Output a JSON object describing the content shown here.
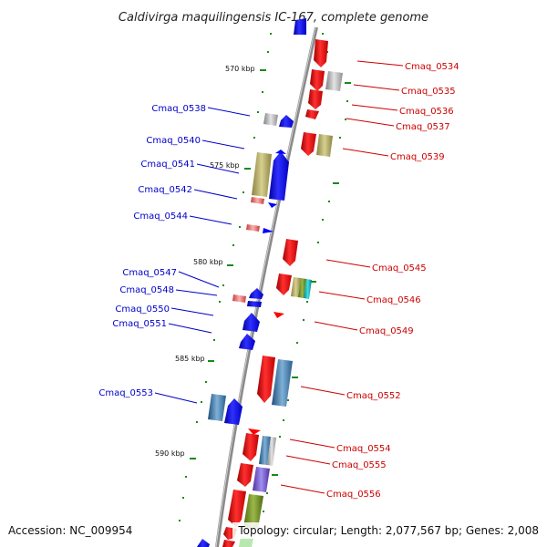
{
  "title": "Caldivirga maquilingensis IC-167, complete genome",
  "footer": {
    "accession": "Accession: NC_009954",
    "summary": "Topology: circular; Length: 2,077,567 bp; Genes: 2,008"
  },
  "scale_labels": [
    "570 kbp",
    "575 kbp",
    "580 kbp",
    "585 kbp",
    "590 kbp"
  ],
  "genes_left": [
    {
      "label": "Cmaq_0538",
      "color": "#0000cc"
    },
    {
      "label": "Cmaq_0540",
      "color": "#0000cc"
    },
    {
      "label": "Cmaq_0541",
      "color": "#0000cc"
    },
    {
      "label": "Cmaq_0542",
      "color": "#0000cc"
    },
    {
      "label": "Cmaq_0544",
      "color": "#0000cc"
    },
    {
      "label": "Cmaq_0547",
      "color": "#0000cc"
    },
    {
      "label": "Cmaq_0548",
      "color": "#0000cc"
    },
    {
      "label": "Cmaq_0550",
      "color": "#0000cc"
    },
    {
      "label": "Cmaq_0551",
      "color": "#0000cc"
    },
    {
      "label": "Cmaq_0553",
      "color": "#0000cc"
    }
  ],
  "genes_right": [
    {
      "label": "Cmaq_0534",
      "color": "#cc0000"
    },
    {
      "label": "Cmaq_0535",
      "color": "#cc0000"
    },
    {
      "label": "Cmaq_0536",
      "color": "#cc0000"
    },
    {
      "label": "Cmaq_0537",
      "color": "#cc0000"
    },
    {
      "label": "Cmaq_0539",
      "color": "#cc0000"
    },
    {
      "label": "Cmaq_0545",
      "color": "#cc0000"
    },
    {
      "label": "Cmaq_0546",
      "color": "#cc0000"
    },
    {
      "label": "Cmaq_0549",
      "color": "#cc0000"
    },
    {
      "label": "Cmaq_0552",
      "color": "#cc0000"
    },
    {
      "label": "Cmaq_0554",
      "color": "#cc0000"
    },
    {
      "label": "Cmaq_0555",
      "color": "#cc0000"
    },
    {
      "label": "Cmaq_0556",
      "color": "#cc0000"
    }
  ],
  "colors": {
    "forward_strand": "#ff0000",
    "reverse_strand": "#0000ff",
    "backbone": "#808080",
    "tick": "#1a8a1a"
  }
}
